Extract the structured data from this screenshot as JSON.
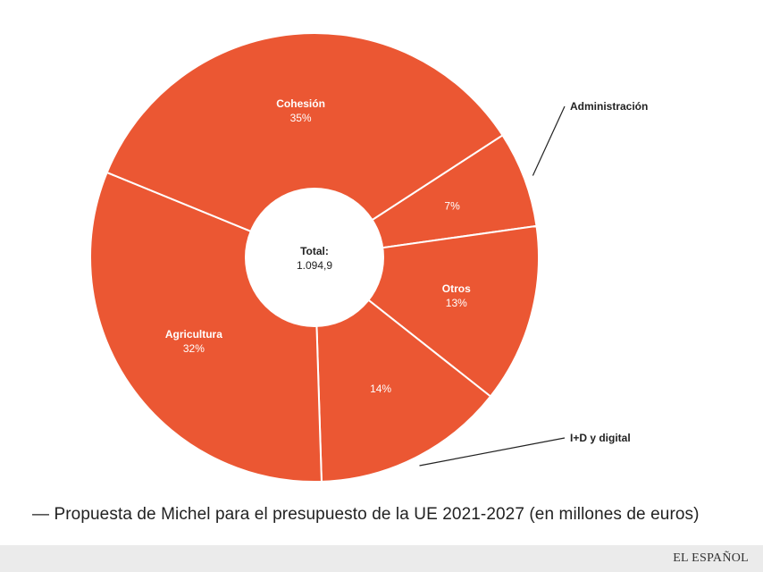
{
  "colors": {
    "slice": "#EB5733",
    "slice_border": "#ffffff",
    "slice_text": "#ffffff",
    "center_text": "#222222",
    "callout": "#222222",
    "footer_bg": "#ebebeb"
  },
  "chart_data": {
    "type": "pie",
    "donut": true,
    "center_label": {
      "title": "Total:",
      "value": "1.094,9"
    },
    "slices": [
      {
        "label": "Administración",
        "percent_label": "7%",
        "value": 7,
        "label_position": "outside"
      },
      {
        "label": "Otros",
        "percent_label": "13%",
        "value": 13,
        "label_position": "inside"
      },
      {
        "label": "I+D y digital",
        "percent_label": "14%",
        "value": 14,
        "label_position": "outside"
      },
      {
        "label": "Agricultura",
        "percent_label": "32%",
        "value": 32,
        "label_position": "inside"
      },
      {
        "label": "Cohesión",
        "percent_label": "35%",
        "value": 35,
        "label_position": "inside"
      }
    ]
  },
  "caption": "— Propuesta de Michel para el presupuesto de la UE 2021-2027 (en millones de euros)",
  "brand": "EL ESPAÑOL"
}
